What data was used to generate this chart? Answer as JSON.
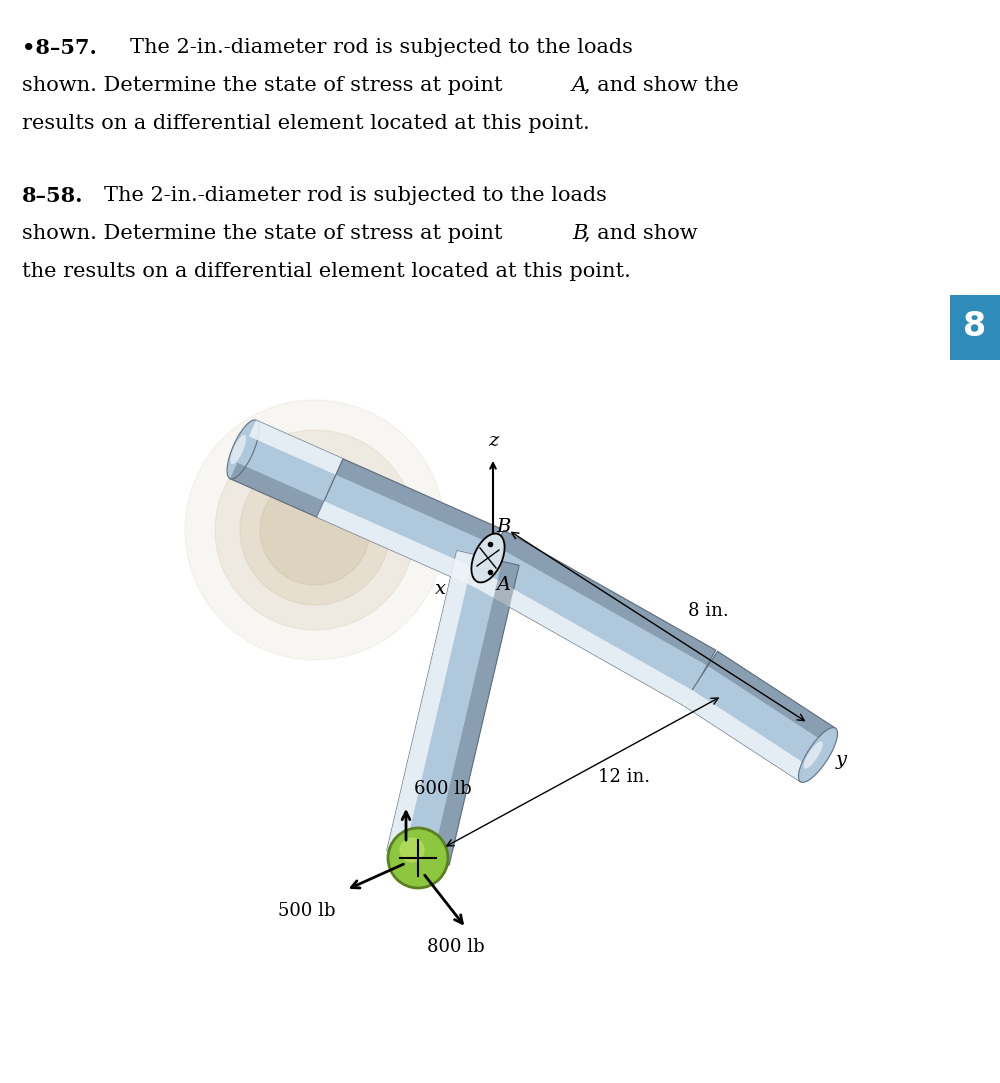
{
  "bg_color": "#ffffff",
  "tab_color": "#2e8bba",
  "tab_number": "8",
  "rod_color_top": "#d8e8f0",
  "rod_color_mid": "#b0c8dc",
  "rod_color_bot": "#8090a0",
  "rod_color_edge": "#607080",
  "rod_color_dark": "#506070",
  "rod_highlight": "#eef4f8",
  "joint_green": "#8dc63f",
  "joint_green_hi": "#b8e060",
  "joint_green_dk": "#5a8020",
  "wall_color": "#c8b898",
  "label_500lb": "500 lb",
  "label_600lb": "600 lb",
  "label_800lb": "800 lb",
  "label_8in": "8 in.",
  "label_12in": "12 in.",
  "label_A": "A",
  "label_B": "B",
  "label_x": "x",
  "label_y": "y",
  "label_z": "z"
}
